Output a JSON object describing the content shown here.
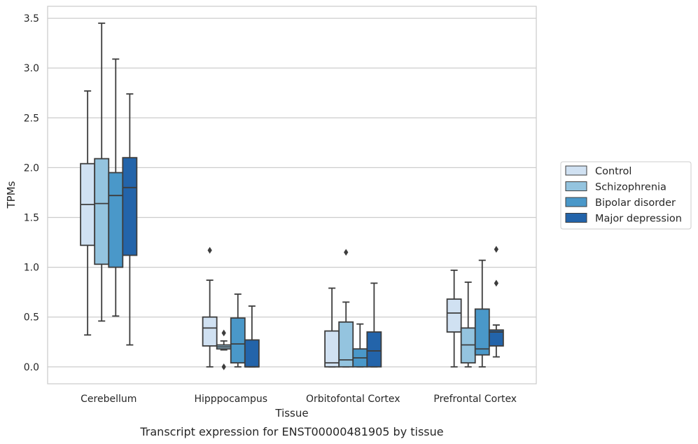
{
  "chart_data": {
    "type": "box",
    "title": "",
    "caption": "Transcript expression for ENST00000481905 by tissue",
    "xlabel": "Tissue",
    "ylabel": "TPMs",
    "ylim": [
      -0.17,
      3.62
    ],
    "yticks": [
      0.0,
      0.5,
      1.0,
      1.5,
      2.0,
      2.5,
      3.0,
      3.5
    ],
    "ytick_labels": [
      "0.0",
      "0.5",
      "1.0",
      "1.5",
      "2.0",
      "2.5",
      "3.0",
      "3.5"
    ],
    "grid": "horizontal",
    "legend_position": "right",
    "categories": [
      "Cerebellum",
      "Hipppocampus",
      "Orbitofontal Cortex",
      "Prefrontal Cortex"
    ],
    "series": [
      {
        "name": "Control",
        "color": "#d0e1f2",
        "boxes": [
          {
            "whisker_low": 0.32,
            "q1": 1.22,
            "median": 1.63,
            "q3": 2.04,
            "whisker_high": 2.77,
            "outliers": []
          },
          {
            "whisker_low": 0.0,
            "q1": 0.21,
            "median": 0.39,
            "q3": 0.5,
            "whisker_high": 0.87,
            "outliers": [
              1.17
            ]
          },
          {
            "whisker_low": 0.0,
            "q1": 0.0,
            "median": 0.04,
            "q3": 0.36,
            "whisker_high": 0.79,
            "outliers": []
          },
          {
            "whisker_low": 0.0,
            "q1": 0.35,
            "median": 0.54,
            "q3": 0.68,
            "whisker_high": 0.97,
            "outliers": []
          }
        ]
      },
      {
        "name": "Schizophrenia",
        "color": "#94c4df",
        "boxes": [
          {
            "whisker_low": 0.46,
            "q1": 1.03,
            "median": 1.64,
            "q3": 2.09,
            "whisker_high": 3.45,
            "outliers": []
          },
          {
            "whisker_low": 0.17,
            "q1": 0.18,
            "median": 0.2,
            "q3": 0.22,
            "whisker_high": 0.26,
            "outliers": [
              0.34,
              0.0
            ]
          },
          {
            "whisker_low": 0.0,
            "q1": 0.0,
            "median": 0.07,
            "q3": 0.45,
            "whisker_high": 0.65,
            "outliers": [
              1.15
            ]
          },
          {
            "whisker_low": 0.0,
            "q1": 0.04,
            "median": 0.22,
            "q3": 0.39,
            "whisker_high": 0.85,
            "outliers": []
          }
        ]
      },
      {
        "name": "Bipolar disorder",
        "color": "#4a98c9",
        "boxes": [
          {
            "whisker_low": 0.51,
            "q1": 1.0,
            "median": 1.72,
            "q3": 1.95,
            "whisker_high": 3.09,
            "outliers": []
          },
          {
            "whisker_low": 0.0,
            "q1": 0.04,
            "median": 0.23,
            "q3": 0.49,
            "whisker_high": 0.73,
            "outliers": []
          },
          {
            "whisker_low": 0.0,
            "q1": 0.0,
            "median": 0.09,
            "q3": 0.18,
            "whisker_high": 0.43,
            "outliers": []
          },
          {
            "whisker_low": 0.0,
            "q1": 0.12,
            "median": 0.18,
            "q3": 0.58,
            "whisker_high": 1.07,
            "outliers": []
          }
        ]
      },
      {
        "name": "Major depression",
        "color": "#2364aa",
        "boxes": [
          {
            "whisker_low": 0.22,
            "q1": 1.12,
            "median": 1.8,
            "q3": 2.1,
            "whisker_high": 2.74,
            "outliers": []
          },
          {
            "whisker_low": 0.0,
            "q1": 0.0,
            "median": 0.0,
            "q3": 0.27,
            "whisker_high": 0.61,
            "outliers": []
          },
          {
            "whisker_low": 0.0,
            "q1": 0.0,
            "median": 0.16,
            "q3": 0.35,
            "whisker_high": 0.84,
            "outliers": []
          },
          {
            "whisker_low": 0.1,
            "q1": 0.21,
            "median": 0.35,
            "q3": 0.37,
            "whisker_high": 0.42,
            "outliers": [
              1.18,
              0.84
            ]
          }
        ]
      }
    ]
  }
}
